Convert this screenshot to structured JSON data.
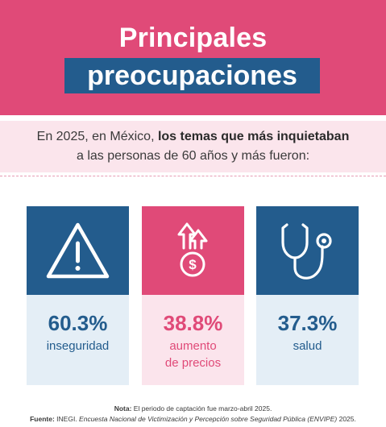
{
  "header": {
    "title_line1": "Principales",
    "title_line2": "preocupaciones",
    "bg_color": "#e04a78",
    "highlight_color": "#235c8d"
  },
  "intro": {
    "text_before": "En 2025, en México, ",
    "text_bold": "los temas que más inquietaban",
    "text_after": "a las personas de 60 años y más fueron:"
  },
  "cards": [
    {
      "icon": "warning-triangle-icon",
      "value": "60.3%",
      "label": "inseguridad",
      "color": "#235c8d"
    },
    {
      "icon": "rising-prices-icon",
      "value": "38.8%",
      "label_line1": "aumento",
      "label_line2": "de precios",
      "color": "#e04a78"
    },
    {
      "icon": "stethoscope-icon",
      "value": "37.3%",
      "label": "salud",
      "color": "#235c8d"
    }
  ],
  "footer": {
    "note_label": "Nota:",
    "note_text": " El periodo de captación fue marzo-abril 2025.",
    "source_label": "Fuente:",
    "source_org": " INEGI. ",
    "source_title": "Encuesta Nacional de Victimización y Percepción sobre Seguridad Pública (ENVIPE)",
    "source_year": " 2025."
  }
}
